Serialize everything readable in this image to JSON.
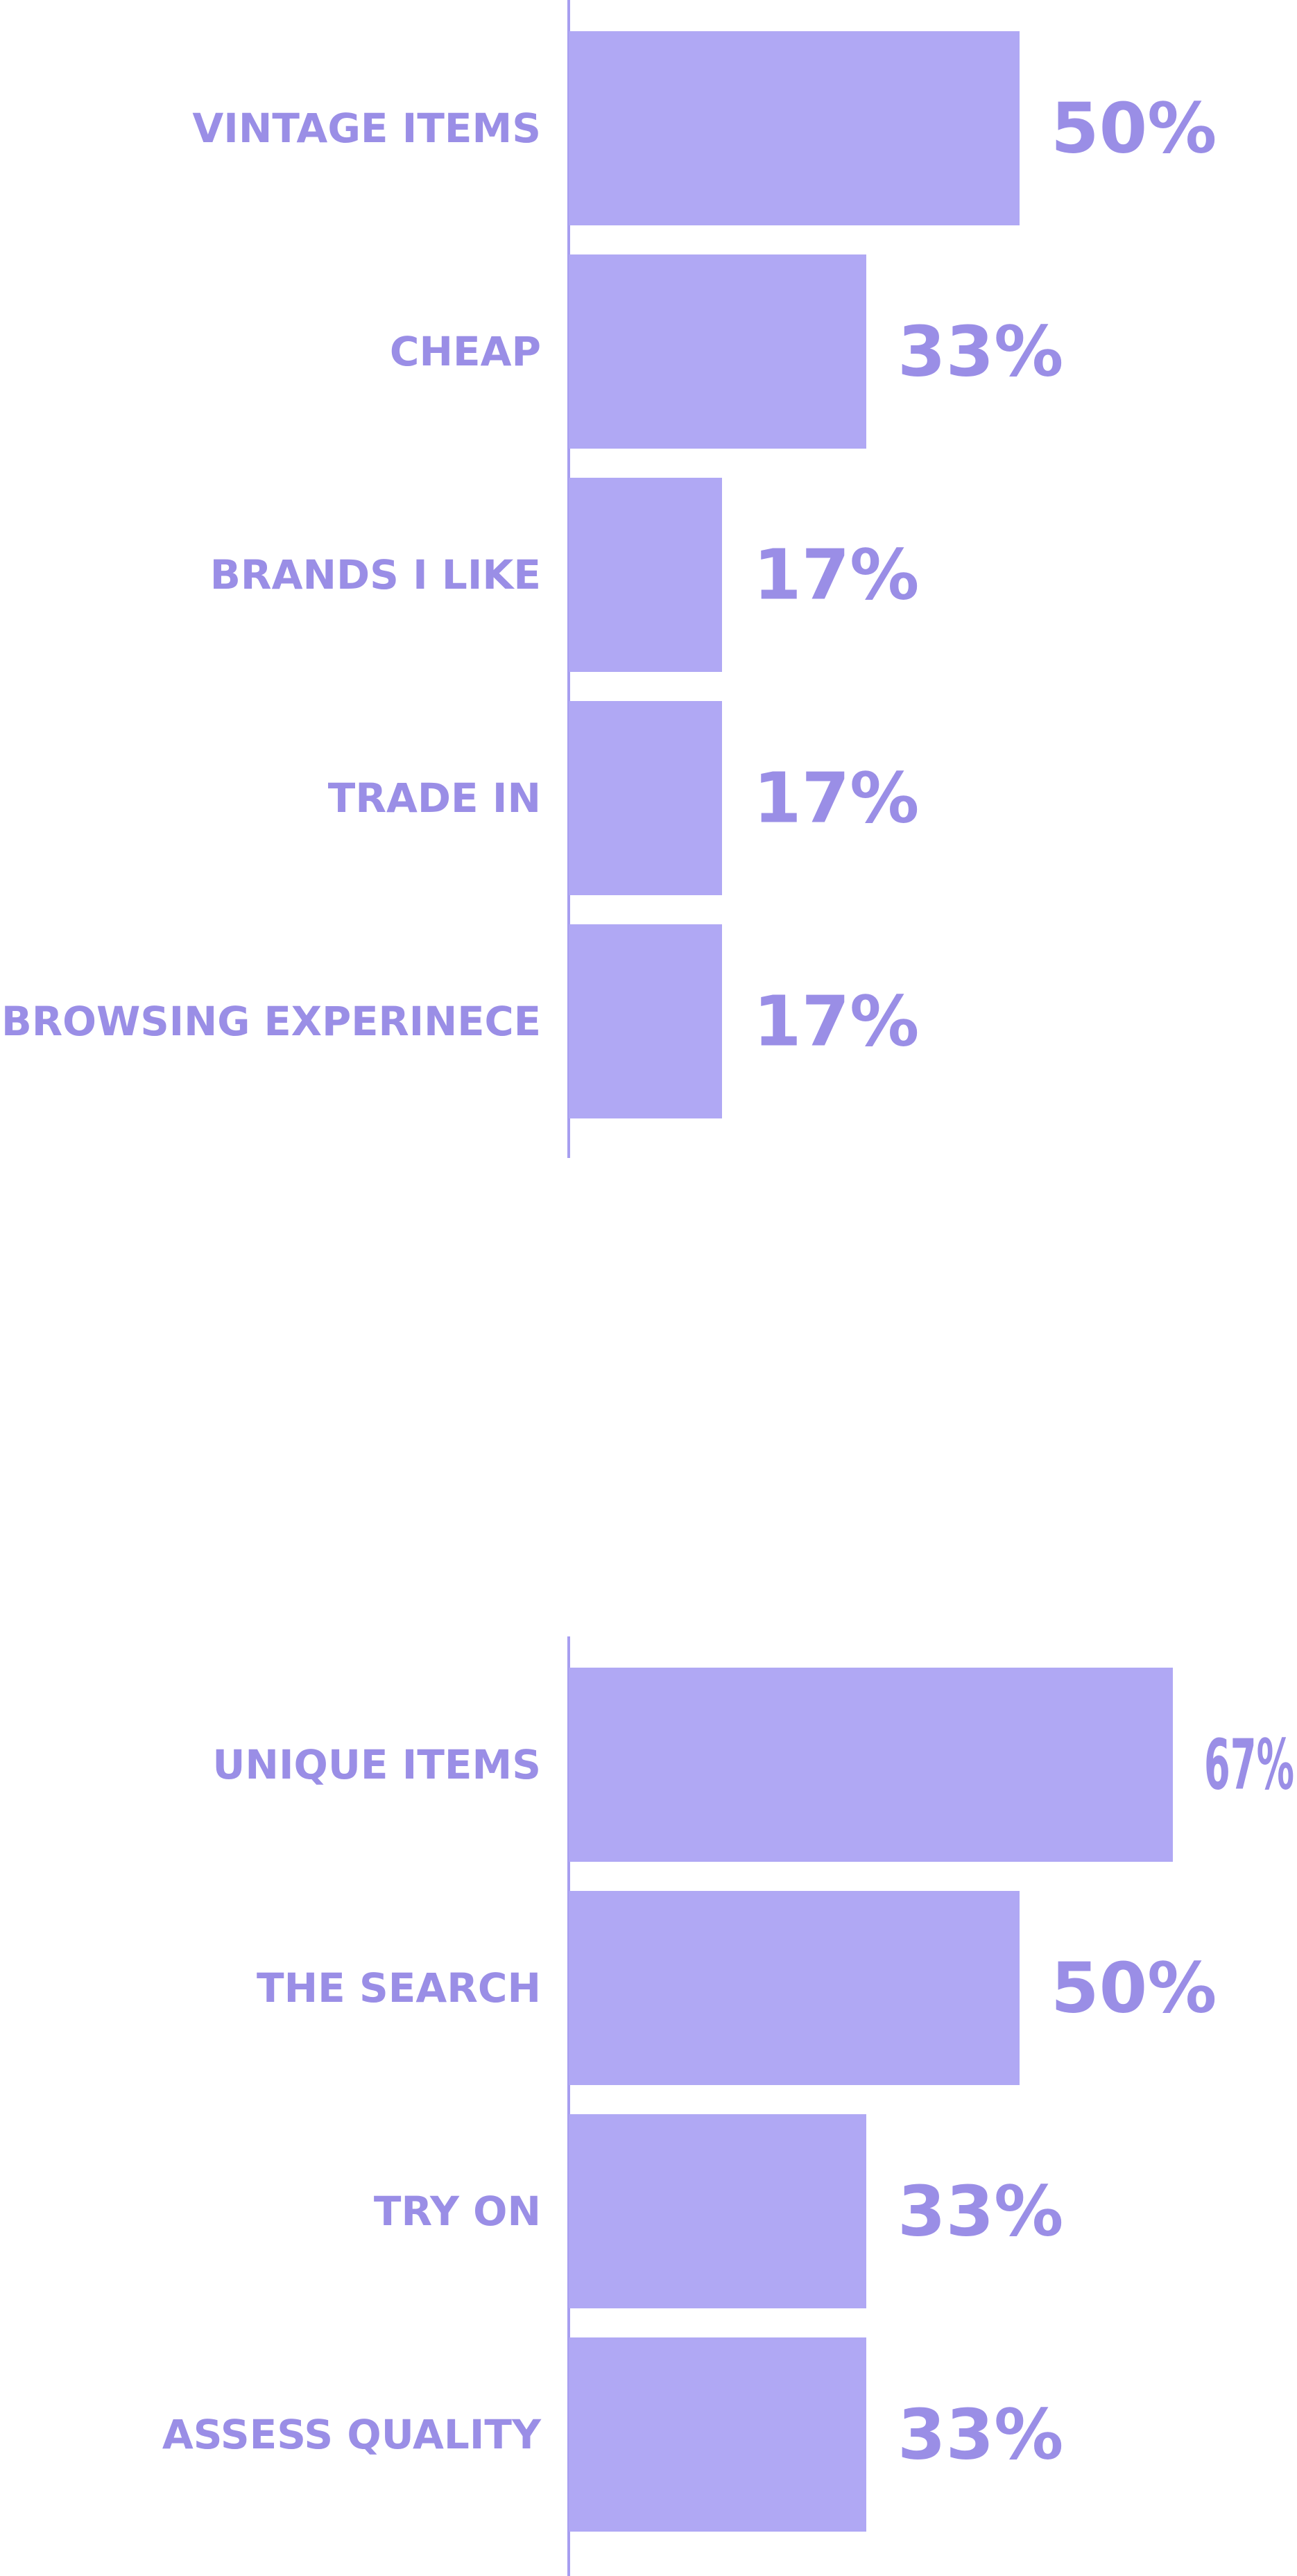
{
  "colors": {
    "bar": "#b0a8f4",
    "text": "#9a8ee6",
    "axis": "#a79ef0"
  },
  "chart_data": [
    {
      "type": "bar",
      "orientation": "horizontal",
      "categories": [
        "VINTAGE ITEMS",
        "CHEAP",
        "BRANDS I LIKE",
        "TRADE IN",
        "BROWSING EXPERINECE"
      ],
      "values": [
        50,
        33,
        17,
        17,
        17
      ],
      "value_labels": [
        "50%",
        "33%",
        "17%",
        "17%",
        "17%"
      ],
      "unit": "%",
      "xlim": [
        0,
        100
      ],
      "grid": false,
      "legend": "none"
    },
    {
      "type": "bar",
      "orientation": "horizontal",
      "categories": [
        "UNIQUE ITEMS",
        "THE SEARCH",
        "TRY ON",
        "ASSESS QUALITY"
      ],
      "values": [
        67,
        50,
        33,
        33
      ],
      "value_labels": [
        "67%",
        "50%",
        "33%",
        "33%"
      ],
      "unit": "%",
      "xlim": [
        0,
        100
      ],
      "grid": false,
      "legend": "none"
    }
  ]
}
